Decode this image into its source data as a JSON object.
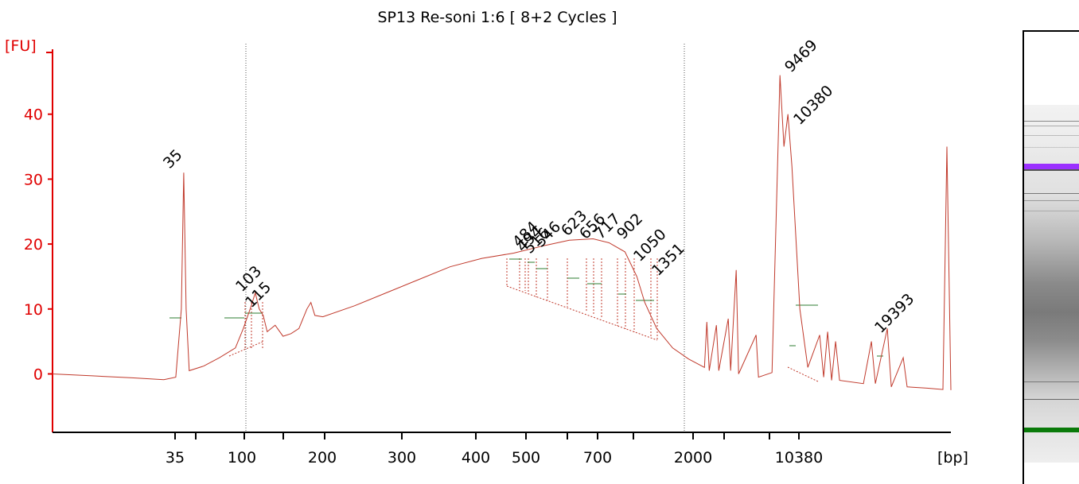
{
  "title": "SP13 Re-soni 1:6  [ 8+2 Cycles ]",
  "colors": {
    "trace": "#c0392b",
    "axis": "#e00000",
    "marker_low": "#008000",
    "marker_high": "#9b30ff",
    "region_line": "#c0392b",
    "guide": "#555555"
  },
  "chart_data": {
    "type": "line",
    "ylabel": "[FU]",
    "xlabel": "[bp]",
    "ylim": [
      -9,
      50
    ],
    "y_ticks": [
      "0",
      "10",
      "20",
      "30",
      "40"
    ],
    "y_tick_values": [
      0,
      10,
      20,
      30,
      40
    ],
    "x_tick_labels": [
      "35",
      "100",
      "200",
      "300",
      "400",
      "500",
      "700",
      "2000",
      "10380"
    ],
    "series": [
      {
        "values_by_position": [
          [
            0.0,
            0.0
          ],
          [
            0.05,
            -0.3
          ],
          [
            0.1,
            -0.6
          ],
          [
            0.14,
            -0.9
          ],
          [
            0.155,
            -0.5
          ],
          [
            0.162,
            10
          ],
          [
            0.165,
            31
          ],
          [
            0.168,
            10
          ],
          [
            0.172,
            0.5
          ],
          [
            0.19,
            1.2
          ],
          [
            0.21,
            2.5
          ],
          [
            0.23,
            4
          ],
          [
            0.24,
            7
          ],
          [
            0.25,
            10.5
          ],
          [
            0.255,
            12.5
          ],
          [
            0.26,
            10
          ],
          [
            0.265,
            9
          ],
          [
            0.27,
            6.5
          ],
          [
            0.28,
            7.5
          ],
          [
            0.29,
            5.8
          ],
          [
            0.3,
            6.2
          ],
          [
            0.31,
            7
          ],
          [
            0.32,
            10
          ],
          [
            0.325,
            11
          ],
          [
            0.33,
            9
          ],
          [
            0.34,
            8.8
          ],
          [
            0.38,
            10.5
          ],
          [
            0.42,
            12.5
          ],
          [
            0.46,
            14.5
          ],
          [
            0.5,
            16.5
          ],
          [
            0.54,
            17.8
          ],
          [
            0.58,
            18.6
          ],
          [
            0.62,
            19.8
          ],
          [
            0.65,
            20.6
          ],
          [
            0.68,
            20.8
          ],
          [
            0.7,
            20.2
          ],
          [
            0.72,
            18.8
          ],
          [
            0.735,
            15
          ],
          [
            0.745,
            11
          ],
          [
            0.76,
            7
          ],
          [
            0.78,
            4
          ],
          [
            0.8,
            2.3
          ],
          [
            0.82,
            1
          ],
          [
            0.823,
            8
          ],
          [
            0.826,
            0.5
          ],
          [
            0.835,
            7.5
          ],
          [
            0.838,
            0.5
          ],
          [
            0.85,
            8.5
          ],
          [
            0.853,
            0.5
          ],
          [
            0.86,
            16
          ],
          [
            0.863,
            0
          ],
          [
            0.885,
            6
          ],
          [
            0.888,
            -0.5
          ],
          [
            0.905,
            0.2
          ],
          [
            0.915,
            46
          ],
          [
            0.92,
            35
          ],
          [
            0.925,
            40
          ],
          [
            0.93,
            32
          ],
          [
            0.94,
            10
          ],
          [
            0.95,
            1
          ],
          [
            0.965,
            6
          ],
          [
            0.97,
            -0.5
          ],
          [
            0.975,
            6.5
          ],
          [
            0.98,
            -1
          ],
          [
            0.985,
            5
          ],
          [
            0.99,
            -1
          ],
          [
            1.02,
            -1.5
          ],
          [
            1.03,
            5
          ],
          [
            1.035,
            -1.5
          ],
          [
            1.05,
            7
          ],
          [
            1.055,
            -2
          ],
          [
            1.07,
            2.5
          ],
          [
            1.075,
            -2
          ],
          [
            1.1,
            -2.2
          ],
          [
            1.12,
            -2.4
          ],
          [
            1.125,
            35
          ],
          [
            1.13,
            -2.5
          ]
        ]
      }
    ],
    "peaks": [
      {
        "label": "35",
        "color_key": "marker_low"
      },
      {
        "label": "103"
      },
      {
        "label": "115"
      },
      {
        "label": "484"
      },
      {
        "label": "494"
      },
      {
        "label": "516"
      },
      {
        "label": "546"
      },
      {
        "label": "623"
      },
      {
        "label": "656"
      },
      {
        "label": "717"
      },
      {
        "label": "902"
      },
      {
        "label": "1050"
      },
      {
        "label": "1351"
      },
      {
        "label": "9469"
      },
      {
        "label": "10380",
        "color_key": "marker_high"
      },
      {
        "label": "19393"
      }
    ]
  },
  "gel": {
    "lane_name": "gel-lane"
  }
}
